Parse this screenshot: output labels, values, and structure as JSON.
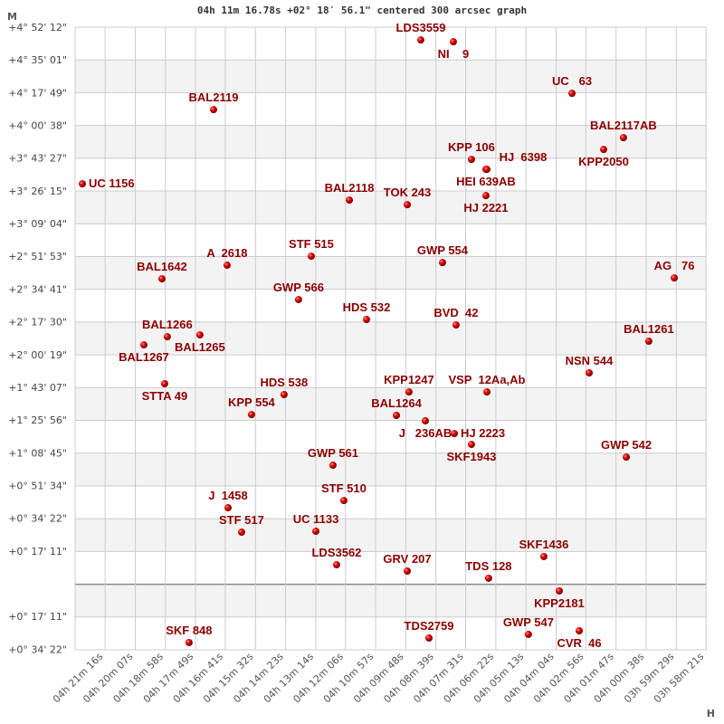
{
  "chart_data": {
    "type": "scatter",
    "title": "04h 11m 16.78s +02° 18′ 56.1\" centered 300 arcsec graph",
    "xlabel": "H",
    "ylabel": "M",
    "xlim_ra_hours": [
      4.3735,
      3.9726
    ],
    "ylim_dec_degrees": [
      -0.578,
      4.87
    ],
    "grid": true,
    "alternating_row_shading": true,
    "colors": {
      "point": "#dd0000",
      "label": "#8b0000",
      "grid": "#cccccc",
      "band": "#f3f3f3",
      "zero_line": "#888888"
    },
    "x_ticks": [
      "04h 21m 16s",
      "04h 20m 07s",
      "04h 18m 58s",
      "04h 17m 49s",
      "04h 16m 41s",
      "04h 15m 32s",
      "04h 14m 23s",
      "04h 13m 14s",
      "04h 12m 06s",
      "04h 10m 57s",
      "04h 09m 48s",
      "04h 08m 39s",
      "04h 07m 31s",
      "04h 06m 22s",
      "04h 05m 13s",
      "04h 04m 04s",
      "04h 02m 56s",
      "04h 01m 47s",
      "04h 00m 38s",
      "03h 59m 29s",
      "03h 58m 21s"
    ],
    "y_ticks": [
      {
        "label": "+4° 52' 12\"",
        "dec": 4.87
      },
      {
        "label": "+4° 35' 01\"",
        "dec": 4.5835
      },
      {
        "label": "+4° 17' 49\"",
        "dec": 4.2971
      },
      {
        "label": "+4° 00' 38\"",
        "dec": 4.0106
      },
      {
        "label": "+3° 43' 27\"",
        "dec": 3.7242
      },
      {
        "label": "+3° 26' 15\"",
        "dec": 3.4377
      },
      {
        "label": "+3° 09' 04\"",
        "dec": 3.1512
      },
      {
        "label": "+2° 51' 53\"",
        "dec": 2.8648
      },
      {
        "label": "+2° 34' 41\"",
        "dec": 2.5783
      },
      {
        "label": "+2° 17' 30\"",
        "dec": 2.2919
      },
      {
        "label": "+2° 00' 19\"",
        "dec": 2.0054
      },
      {
        "label": "+1° 43' 07\"",
        "dec": 1.719
      },
      {
        "label": "+1° 25' 56\"",
        "dec": 1.4325
      },
      {
        "label": "+1° 08' 45\"",
        "dec": 1.146
      },
      {
        "label": "+0° 51' 34\"",
        "dec": 0.8596
      },
      {
        "label": "+0° 34' 22\"",
        "dec": 0.5731
      },
      {
        "label": "+0° 17' 11\"",
        "dec": 0.2865
      },
      {
        "label": "+0° 17' 11\"",
        "dec": -0.2865
      },
      {
        "label": "+0° 34' 22\"",
        "dec": -0.5729
      }
    ],
    "points": [
      {
        "name": "LDS3559",
        "ra": 4.1538,
        "dec": 4.758
      },
      {
        "name": "NI    9",
        "ra": 4.1331,
        "dec": 4.742
      },
      {
        "name": "UC   63",
        "ra": 4.0577,
        "dec": 4.291
      },
      {
        "name": "BAL2119",
        "ra": 4.2855,
        "dec": 4.148
      },
      {
        "name": "BAL2117AB",
        "ra": 4.025,
        "dec": 3.903
      },
      {
        "name": "KPP2050",
        "ra": 4.0376,
        "dec": 3.8
      },
      {
        "name": "KPP 106",
        "ra": 4.1216,
        "dec": 3.713
      },
      {
        "name": "HEI 639AB",
        "ra": 4.1124,
        "dec": 3.626
      },
      {
        "name": "HJ  6398",
        "ra": 4.1118,
        "dec": 3.626
      },
      {
        "name": "HJ 2221",
        "ra": 4.1124,
        "dec": 3.396
      },
      {
        "name": "UC 1156",
        "ra": 4.3689,
        "dec": 3.499
      },
      {
        "name": "BAL2118",
        "ra": 4.1992,
        "dec": 3.357
      },
      {
        "name": "TOK 243",
        "ra": 4.1624,
        "dec": 3.317
      },
      {
        "name": "A  2618",
        "ra": 4.2769,
        "dec": 2.787
      },
      {
        "name": "STF 515",
        "ra": 4.2234,
        "dec": 2.866
      },
      {
        "name": "GWP 554",
        "ra": 4.14,
        "dec": 2.81
      },
      {
        "name": "AG   76",
        "ra": 3.9927,
        "dec": 2.676
      },
      {
        "name": "BAL1642",
        "ra": 4.3183,
        "dec": 2.668
      },
      {
        "name": "GWP 566",
        "ra": 4.2315,
        "dec": 2.486
      },
      {
        "name": "HDS 532",
        "ra": 4.1883,
        "dec": 2.312
      },
      {
        "name": "BVD  42",
        "ra": 4.1314,
        "dec": 2.264
      },
      {
        "name": "BAL1266",
        "ra": 4.3149,
        "dec": 2.161
      },
      {
        "name": "BAL1265",
        "ra": 4.2942,
        "dec": 2.177
      },
      {
        "name": "BAL1267",
        "ra": 4.3298,
        "dec": 2.09
      },
      {
        "name": "BAL1261",
        "ra": 4.0089,
        "dec": 2.122
      },
      {
        "name": "NSN 544",
        "ra": 4.0468,
        "dec": 1.845
      },
      {
        "name": "STTA 49",
        "ra": 4.3166,
        "dec": 1.75
      },
      {
        "name": "KPP1247",
        "ra": 4.1613,
        "dec": 1.678
      },
      {
        "name": "VSP  12Aa,Ab",
        "ra": 4.1118,
        "dec": 1.678
      },
      {
        "name": "HDS 538",
        "ra": 4.2407,
        "dec": 1.655
      },
      {
        "name": "BAL1264",
        "ra": 4.1693,
        "dec": 1.473
      },
      {
        "name": "J   236AB",
        "ra": 4.1509,
        "dec": 1.425
      },
      {
        "name": "HJ 2223",
        "ra": 4.1325,
        "dec": 1.314
      },
      {
        "name": "SKF1943",
        "ra": 4.1216,
        "dec": 1.219
      },
      {
        "name": "KPP 554",
        "ra": 4.2614,
        "dec": 1.48
      },
      {
        "name": "GWP 542",
        "ra": 4.0232,
        "dec": 1.108
      },
      {
        "name": "GWP 561",
        "ra": 4.2096,
        "dec": 1.037
      },
      {
        "name": "STF 510",
        "ra": 4.2027,
        "dec": 0.728
      },
      {
        "name": "J  1458",
        "ra": 4.2763,
        "dec": 0.665
      },
      {
        "name": "STF 517",
        "ra": 4.2677,
        "dec": 0.451
      },
      {
        "name": "UC 1133",
        "ra": 4.2205,
        "dec": 0.459
      },
      {
        "name": "SKF1436",
        "ra": 4.0756,
        "dec": 0.238
      },
      {
        "name": "LDS3562",
        "ra": 4.2073,
        "dec": 0.166
      },
      {
        "name": "GRV 207",
        "ra": 4.1624,
        "dec": 0.111
      },
      {
        "name": "TDS 128",
        "ra": 4.1107,
        "dec": 0.048
      },
      {
        "name": "KPP2181",
        "ra": 4.0658,
        "dec": -0.063
      },
      {
        "name": "GWP 547",
        "ra": 4.0854,
        "dec": -0.443
      },
      {
        "name": "CVR  46",
        "ra": 4.0531,
        "dec": -0.412
      },
      {
        "name": "TDS2759",
        "ra": 4.1486,
        "dec": -0.475
      },
      {
        "name": "SKF 848",
        "ra": 4.3011,
        "dec": -0.515
      }
    ]
  }
}
